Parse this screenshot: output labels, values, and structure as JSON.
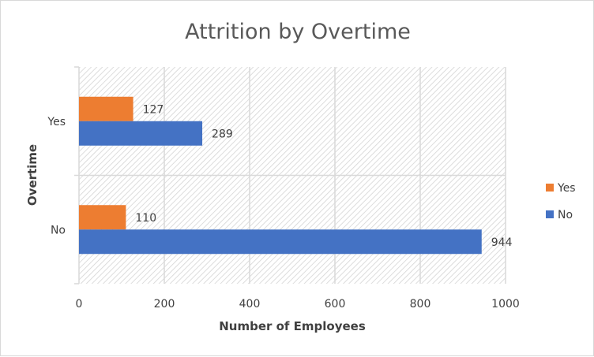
{
  "chart_data": {
    "type": "bar",
    "orientation": "horizontal",
    "title": "Attrition by Overtime",
    "xlabel": "Number of Employees",
    "ylabel": "Overtime",
    "categories": [
      "No",
      "Yes"
    ],
    "series": [
      {
        "name": "No",
        "values": [
          944,
          289
        ],
        "color": "#4472c4"
      },
      {
        "name": "Yes",
        "values": [
          110,
          127
        ],
        "color": "#ed7d31"
      }
    ],
    "xlim": [
      0,
      1000
    ],
    "xticks": [
      "0",
      "200",
      "400",
      "600",
      "800",
      "1000"
    ],
    "grid": true,
    "legend_position": "right",
    "legend_order": [
      "Yes",
      "No"
    ]
  }
}
